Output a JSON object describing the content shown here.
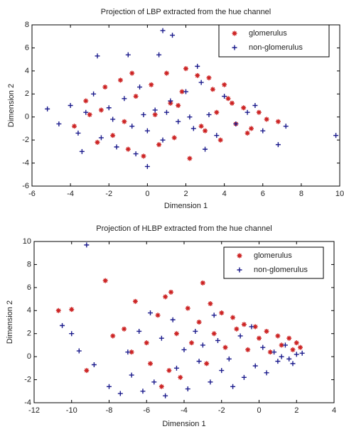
{
  "chart_data": [
    {
      "type": "scatter",
      "title": "Projection of LBP extracted from the hue channel",
      "x_label": "Dimension 1",
      "y_label": "Dimension 2",
      "xlim": [
        -6,
        10
      ],
      "ylim": [
        -6,
        8
      ],
      "xticks": [
        -6,
        -4,
        -2,
        0,
        2,
        4,
        6,
        8,
        10
      ],
      "yticks": [
        -6,
        -4,
        -2,
        0,
        2,
        4,
        6,
        8
      ],
      "legend": "upper right",
      "series": [
        {
          "name": "glomerulus",
          "color": "#cc2222",
          "marker": "*",
          "x": [
            -3.8,
            -3.2,
            -2.6,
            -2.2,
            -1.8,
            -1.4,
            -1.0,
            -0.6,
            -0.2,
            0.2,
            0.6,
            1.0,
            1.4,
            1.8,
            2.2,
            2.6,
            3.0,
            3.4,
            3.8,
            4.2,
            4.6,
            5.0,
            5.4,
            5.8,
            6.2,
            6.8,
            -2.4,
            -1.2,
            0.4,
            1.6,
            2.8,
            3.6,
            4.4,
            5.2,
            -3.0,
            -0.8,
            1.2,
            2.0,
            3.2,
            4.0
          ],
          "y": [
            -0.8,
            1.4,
            -2.2,
            2.6,
            -1.6,
            3.2,
            -2.8,
            1.8,
            -3.4,
            2.8,
            -2.4,
            3.8,
            -1.8,
            2.2,
            -3.6,
            3.6,
            -1.2,
            2.4,
            -2.0,
            1.6,
            -0.6,
            0.8,
            -1.0,
            0.4,
            -0.2,
            -0.4,
            0.6,
            -0.4,
            0.2,
            1.0,
            -0.8,
            0.4,
            1.2,
            -1.4,
            0.2,
            3.8,
            1.2,
            4.2,
            3.4,
            2.8
          ]
        },
        {
          "name": "non-glomerulus",
          "color": "#1a1a8c",
          "marker": "+",
          "x": [
            -5.2,
            -4.6,
            -4.0,
            -3.6,
            -3.2,
            -2.8,
            -2.4,
            -2.0,
            -1.6,
            -1.2,
            -0.8,
            -0.4,
            0.0,
            0.4,
            0.8,
            1.2,
            1.6,
            2.0,
            2.4,
            2.8,
            3.2,
            3.6,
            4.0,
            4.6,
            5.2,
            6.0,
            7.2,
            9.8,
            0.8,
            1.3,
            0.0,
            -2.6,
            -1.0,
            0.6,
            2.6,
            -0.2,
            1.0,
            -1.8,
            2.2,
            -3.4,
            3.0,
            -0.6,
            6.8,
            5.6
          ],
          "y": [
            0.7,
            -0.6,
            1.0,
            -1.4,
            0.4,
            2.0,
            -1.8,
            0.8,
            -2.6,
            1.6,
            -0.8,
            2.6,
            -1.2,
            0.6,
            -2.0,
            1.4,
            -0.4,
            2.2,
            -1.0,
            3.0,
            0.2,
            -1.6,
            1.8,
            -0.6,
            0.4,
            -1.2,
            -0.8,
            -1.6,
            7.5,
            7.1,
            -4.3,
            5.3,
            5.4,
            5.4,
            4.4,
            0.2,
            0.4,
            -0.2,
            0.0,
            -3.0,
            -2.8,
            -3.2,
            -2.4,
            1.0
          ]
        }
      ]
    },
    {
      "type": "scatter",
      "title": "Projection of HLBP extracted from the hue channel",
      "x_label": "Dimension 1",
      "y_label": "Dimension 2",
      "xlim": [
        -12,
        4
      ],
      "ylim": [
        -4,
        10
      ],
      "xticks": [
        -12,
        -10,
        -8,
        -6,
        -4,
        -2,
        0,
        2,
        4
      ],
      "yticks": [
        -4,
        -2,
        0,
        2,
        4,
        6,
        8,
        10
      ],
      "legend": "upper right",
      "series": [
        {
          "name": "glomerulus",
          "color": "#cc2222",
          "marker": "*",
          "x": [
            -10.7,
            -10.0,
            -8.2,
            -3.0,
            -4.7,
            -7.2,
            -6.6,
            -6.0,
            -5.4,
            -5.0,
            -4.4,
            -3.8,
            -3.2,
            -2.6,
            -2.0,
            -1.4,
            -0.8,
            -0.2,
            0.4,
            1.0,
            1.6,
            2.0,
            -7.8,
            -6.8,
            -5.8,
            -4.8,
            -3.6,
            -2.4,
            -1.2,
            0.0,
            1.2,
            -1.8,
            -0.6,
            0.6,
            1.8,
            -2.8,
            -4.2,
            -5.2,
            2.2,
            -9.2
          ],
          "y": [
            4.0,
            4.1,
            6.6,
            6.4,
            5.6,
            2.4,
            4.8,
            1.2,
            3.6,
            5.2,
            2.0,
            4.2,
            3.0,
            4.6,
            3.8,
            3.4,
            2.8,
            2.6,
            2.2,
            1.8,
            1.6,
            1.2,
            1.8,
            0.4,
            -0.6,
            -1.2,
            1.2,
            2.0,
            2.4,
            1.6,
            1.0,
            0.8,
            0.6,
            0.4,
            0.6,
            -0.6,
            -1.8,
            -2.6,
            0.8,
            -1.2
          ]
        },
        {
          "name": "non-glomerulus",
          "color": "#1a1a8c",
          "marker": "+",
          "x": [
            -9.2,
            -10.5,
            -10.0,
            -9.6,
            -8.8,
            -8.0,
            -7.4,
            -6.8,
            -6.2,
            -5.6,
            -5.0,
            -4.4,
            -3.8,
            -3.2,
            -2.6,
            -2.0,
            -1.4,
            -0.8,
            -0.2,
            0.4,
            1.0,
            1.6,
            2.0,
            2.3,
            -5.8,
            -4.6,
            -3.4,
            -2.2,
            -1.0,
            0.2,
            1.2,
            -6.4,
            -7.0,
            -3.0,
            -1.6,
            0.8,
            1.8,
            -4.0,
            -5.2,
            -2.4,
            -0.4,
            1.4
          ],
          "y": [
            9.7,
            2.7,
            2.0,
            0.5,
            -0.7,
            -2.6,
            -3.2,
            -1.6,
            -3.0,
            -2.2,
            -3.4,
            -1.0,
            -2.8,
            -0.4,
            -2.2,
            -1.2,
            -2.6,
            -1.8,
            -0.8,
            -1.4,
            -0.4,
            -0.2,
            0.2,
            0.3,
            3.8,
            3.2,
            2.2,
            1.4,
            1.8,
            0.8,
            0.0,
            2.2,
            0.4,
            1.0,
            -0.2,
            0.4,
            -0.6,
            0.6,
            1.6,
            3.6,
            2.6,
            1.0
          ]
        }
      ]
    }
  ]
}
